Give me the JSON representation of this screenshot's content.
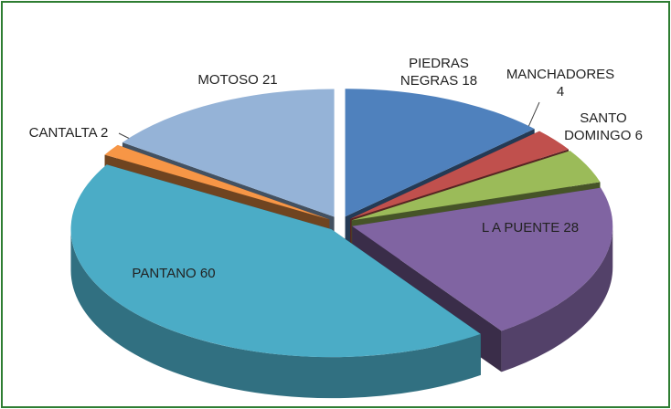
{
  "chart_data": {
    "type": "pie3d",
    "categories": [
      "PIEDRAS NEGRAS",
      "MANCHADORES",
      "SANTO DOMINGO",
      "L A PUENTE",
      "PANTANO",
      "CANTALTA",
      "MOTOSO"
    ],
    "values": [
      18,
      4,
      6,
      28,
      60,
      2,
      21
    ],
    "colors": [
      "#4f81bd",
      "#c0504d",
      "#9bbb59",
      "#8064a2",
      "#4bacc6",
      "#f79646",
      "#95b3d7"
    ]
  }
}
